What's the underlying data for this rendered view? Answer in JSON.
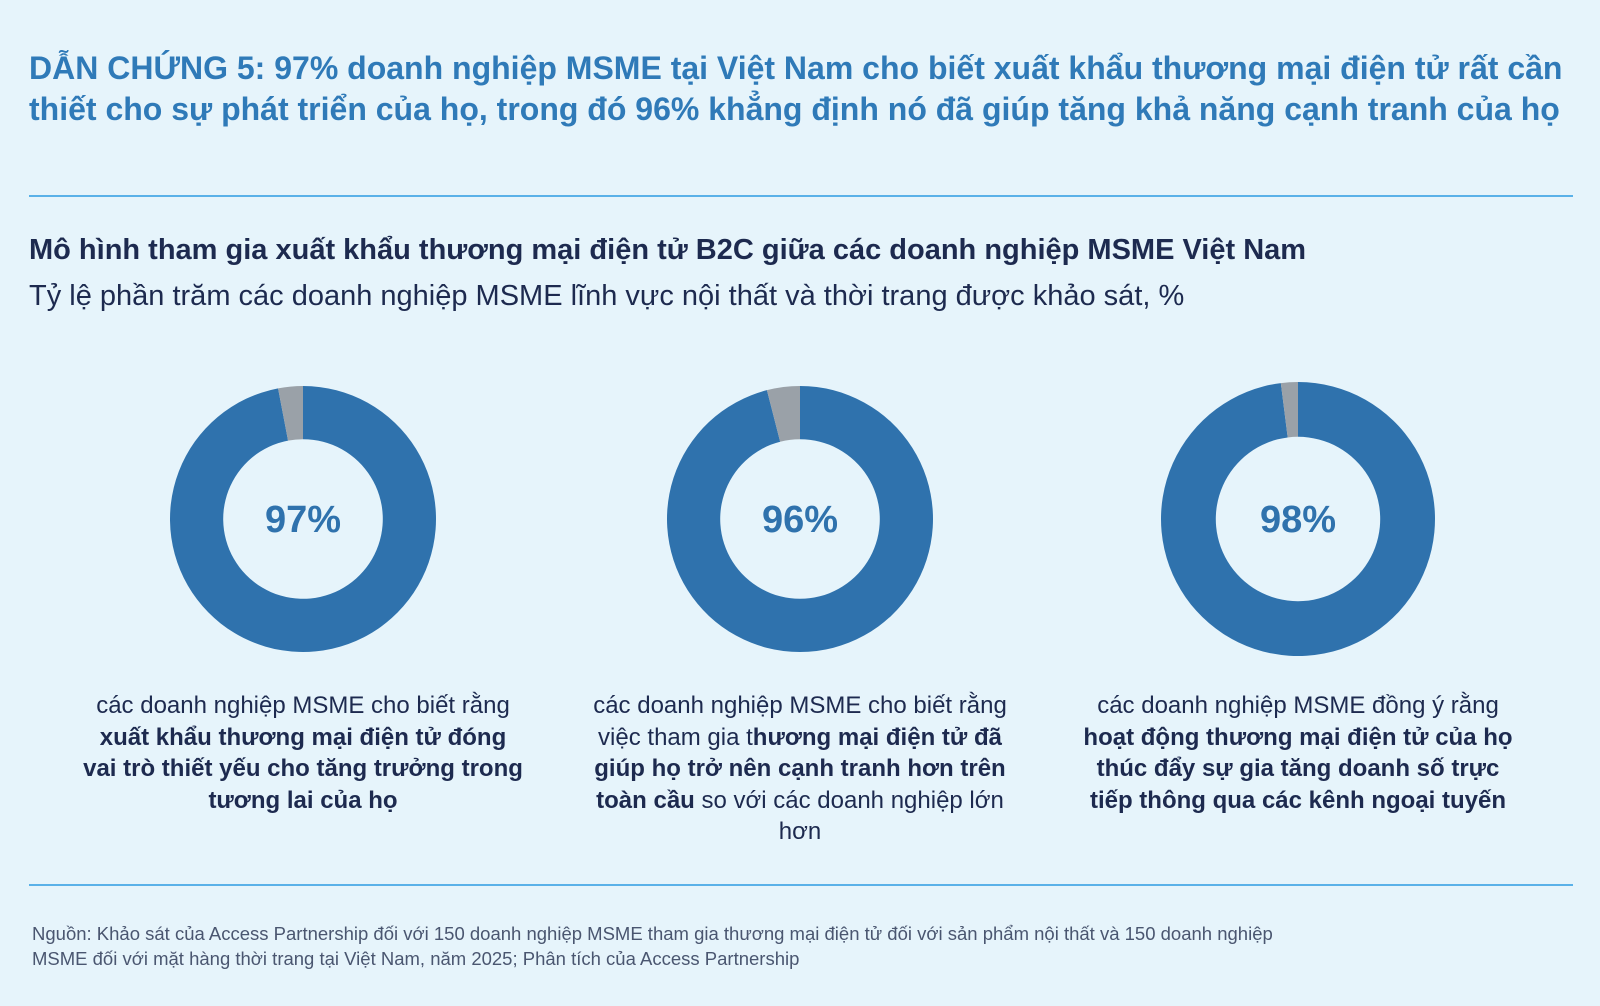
{
  "headline": "DẪN CHỨNG 5: 97% doanh nghiệp MSME tại Việt Nam cho biết xuất khẩu thương mại điện tử rất cần thiết cho sự phát triển của họ, trong đó 96% khẳng định nó đã giúp tăng khả năng cạnh tranh của họ",
  "colors": {
    "accent": "#2f72ad",
    "remainder": "#9aa1a8",
    "headline": "#2f7ab8",
    "rule": "#5ab1e8",
    "background": "#e6f4fb"
  },
  "chart_data": {
    "type": "donut",
    "title": "Mô hình tham gia xuất khẩu thương mại điện tử B2C giữa các doanh nghiệp MSME Việt Nam",
    "subtitle": "Tỷ lệ phần trăm các doanh nghiệp MSME lĩnh vực nội thất và thời trang được khảo sát, %",
    "donuts": [
      {
        "value": 97,
        "label": "97%",
        "caption": [
          {
            "text": "các doanh nghiệp MSME cho biết rằng ",
            "bold": false
          },
          {
            "text": "xuất khẩu thương mại điện tử đóng vai trò thiết yếu cho tăng trưởng trong tương lai của họ",
            "bold": true
          }
        ]
      },
      {
        "value": 96,
        "label": "96%",
        "caption": [
          {
            "text": "các doanh nghiệp MSME cho biết rằng việc tham gia t",
            "bold": false
          },
          {
            "text": "hương mại điện tử đã giúp họ trở nên cạnh tranh hơn trên toàn cầu",
            "bold": true
          },
          {
            "text": " so với các doanh nghiệp lớn hơn",
            "bold": false
          }
        ]
      },
      {
        "value": 98,
        "label": "98%",
        "caption": [
          {
            "text": "các doanh nghiệp MSME đồng ý rằng ",
            "bold": false
          },
          {
            "text": "hoạt động thương mại điện tử của họ thúc đẩy sự gia tăng doanh số trực tiếp thông qua các kênh ngoại tuyến",
            "bold": true
          }
        ]
      }
    ]
  },
  "source": "Nguồn: Khảo sát của Access Partnership đối với 150 doanh nghiệp MSME tham gia thương mại điện tử đối với sản phẩm nội thất và 150 doanh nghiệp MSME đối với mặt hàng thời trang tại Việt Nam, năm 2025; Phân tích của Access Partnership"
}
